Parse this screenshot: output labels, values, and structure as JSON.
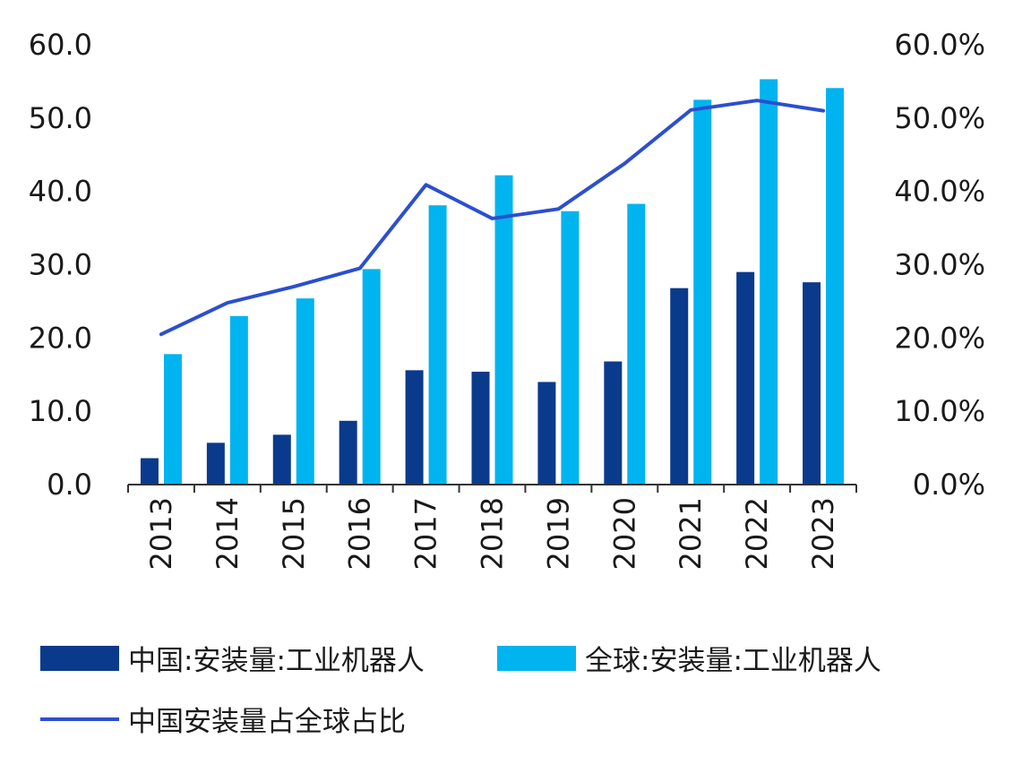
{
  "chart_data": {
    "type": "bar",
    "categories": [
      "2013",
      "2014",
      "2015",
      "2016",
      "2017",
      "2018",
      "2019",
      "2020",
      "2021",
      "2022",
      "2023"
    ],
    "series": [
      {
        "name": "中国:安装量:工业机器人",
        "kind": "bar",
        "axis": "left",
        "color": "#0a3a8c",
        "values": [
          3.6,
          5.7,
          6.8,
          8.7,
          15.6,
          15.4,
          14.0,
          16.8,
          26.8,
          29.0,
          27.6
        ]
      },
      {
        "name": "全球:安装量:工业机器人",
        "kind": "bar",
        "axis": "left",
        "color": "#00b4f0",
        "values": [
          17.8,
          23.0,
          25.4,
          29.4,
          38.1,
          42.2,
          37.3,
          38.3,
          52.5,
          55.3,
          54.1
        ]
      },
      {
        "name": "中国安装量占全球占比",
        "kind": "line",
        "axis": "right",
        "color": "#2b4fcf",
        "values": [
          20.5,
          24.8,
          27.0,
          29.5,
          40.9,
          36.3,
          37.6,
          43.8,
          51.1,
          52.4,
          51.0
        ]
      }
    ],
    "y_left": {
      "range": [
        0,
        60
      ],
      "ticks": [
        "0.0",
        "10.0",
        "20.0",
        "30.0",
        "40.0",
        "50.0",
        "60.0"
      ]
    },
    "y_right": {
      "range": [
        0,
        60
      ],
      "ticks": [
        "0.0%",
        "10.0%",
        "20.0%",
        "30.0%",
        "40.0%",
        "50.0%",
        "60.0%"
      ]
    },
    "legend": {
      "position": "bottom"
    },
    "grid": false
  }
}
